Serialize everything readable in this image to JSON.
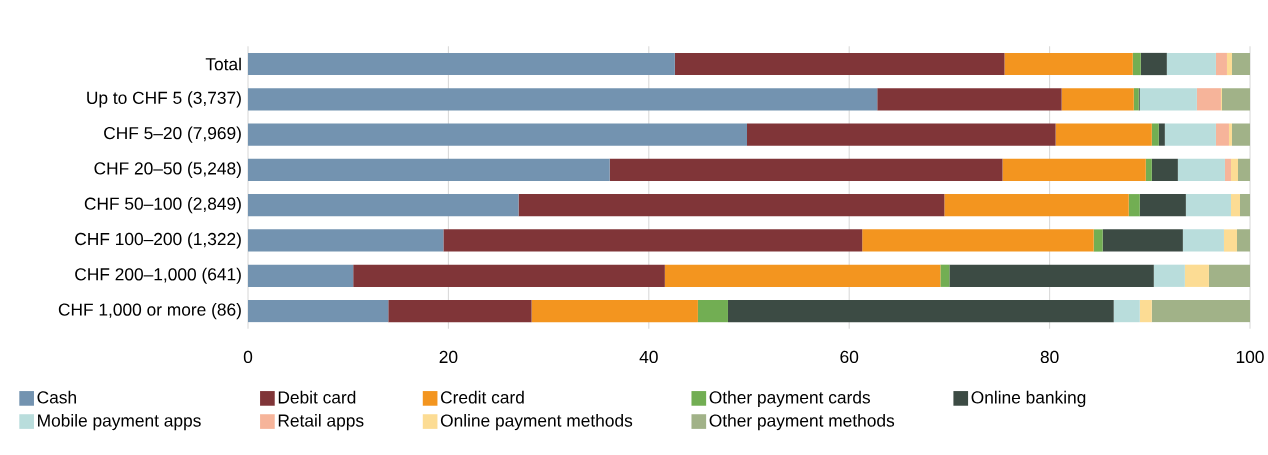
{
  "chart_data": {
    "type": "bar",
    "orientation": "horizontal",
    "stacked": true,
    "categories": [
      "Total",
      "Up to CHF 5 (3,737)",
      "CHF 5–20 (7,969)",
      "CHF 20–50 (5,248)",
      "CHF 50–100 (2,849)",
      "CHF 100–200 (1,322)",
      "CHF 200–1,000 (641)",
      "CHF 1,000 or more (86)"
    ],
    "series": [
      {
        "name": "Cash",
        "color": "#7393b0",
        "values": [
          42.6,
          62.8,
          49.8,
          36.1,
          27.0,
          19.5,
          10.5,
          14.0
        ]
      },
      {
        "name": "Debit card",
        "color": "#803538",
        "values": [
          32.9,
          18.4,
          30.8,
          39.2,
          42.5,
          41.8,
          31.1,
          14.3
        ]
      },
      {
        "name": "Credit card",
        "color": "#f3951f",
        "values": [
          12.8,
          7.2,
          9.6,
          14.3,
          18.4,
          23.1,
          27.5,
          16.6
        ]
      },
      {
        "name": "Other payment cards",
        "color": "#72ae53",
        "values": [
          0.8,
          0.5,
          0.7,
          0.6,
          1.1,
          0.9,
          0.9,
          3.0
        ]
      },
      {
        "name": "Online banking",
        "color": "#3c4b44",
        "values": [
          2.6,
          0.1,
          0.6,
          2.6,
          4.6,
          8.0,
          20.4,
          38.5
        ]
      },
      {
        "name": "Mobile payment apps",
        "color": "#b9dddc",
        "values": [
          4.9,
          5.7,
          5.1,
          4.7,
          4.5,
          4.1,
          3.1,
          2.6
        ]
      },
      {
        "name": "Retail apps",
        "color": "#f6b49a",
        "values": [
          1.1,
          2.4,
          1.3,
          0.6,
          0,
          0,
          0,
          0
        ]
      },
      {
        "name": "Online payment methods",
        "color": "#fcdc94",
        "values": [
          0.5,
          0.1,
          0.3,
          0.7,
          0.9,
          1.3,
          2.4,
          1.2
        ]
      },
      {
        "name": "Other payment methods",
        "color": "#a1b288",
        "values": [
          1.8,
          2.8,
          1.8,
          1.2,
          1.0,
          1.3,
          4.1,
          9.8
        ]
      }
    ],
    "xlim": [
      0,
      100
    ],
    "xticks": [
      0,
      20,
      40,
      60,
      80,
      100
    ],
    "grid": "x",
    "legend": "bottom"
  }
}
